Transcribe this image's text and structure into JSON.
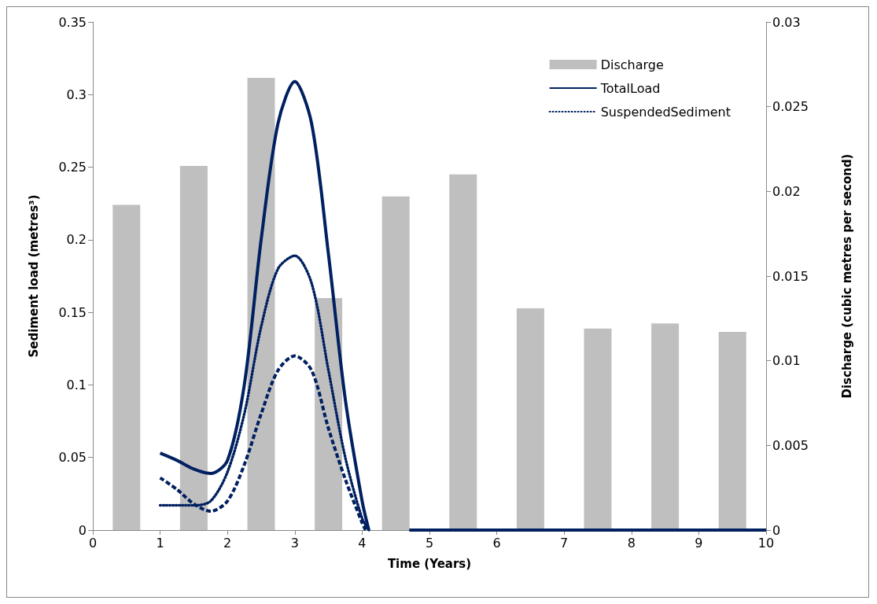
{
  "chart_data": {
    "type": "line",
    "xlabel": "Time (Years)",
    "ylabel": "Sediment load (metres³)",
    "y2label": "Discharge (cubic metres per second)",
    "xlim": [
      0,
      10
    ],
    "xticks": [
      0,
      1,
      2,
      3,
      4,
      5,
      6,
      7,
      8,
      9,
      10
    ],
    "ylim": [
      0,
      0.35
    ],
    "yticks": [
      0,
      0.05,
      0.1,
      0.15,
      0.2,
      0.25,
      0.3,
      0.35
    ],
    "y2lim": [
      0,
      0.03
    ],
    "y2ticks": [
      0,
      0.005,
      0.01,
      0.015,
      0.02,
      0.025,
      0.03
    ],
    "grid": false,
    "legend": "top right",
    "series": [
      {
        "name": "Discharge",
        "type": "bar",
        "axis": "y2",
        "color": "#bfbfbf",
        "x": [
          0.5,
          1.5,
          2.5,
          3.5,
          4.5,
          5.5,
          6.5,
          7.5,
          8.5,
          9.5
        ],
        "values": [
          0.0192,
          0.0215,
          0.0267,
          0.0137,
          0.0197,
          0.021,
          0.0131,
          0.0119,
          0.0122,
          0.0117
        ]
      },
      {
        "name": "TotalLoad",
        "line_style": "solid",
        "color": "#002060",
        "x": [
          1,
          1.25,
          1.5,
          1.75,
          2,
          2.25,
          2.5,
          2.75,
          3,
          3.25,
          3.5,
          3.75,
          4,
          4.1,
          4.4,
          4.7,
          5,
          6,
          7,
          8,
          9,
          10
        ],
        "values": [
          0.053,
          0.048,
          0.042,
          0.039,
          0.048,
          0.1,
          0.2,
          0.28,
          0.309,
          0.28,
          0.19,
          0.09,
          0.02,
          0,
          null,
          0,
          0,
          0,
          0,
          0,
          0,
          0
        ]
      },
      {
        "name": "SuspendedSediment",
        "line_style": "dotted",
        "color": "#002060",
        "x": [
          1,
          1.5,
          1.75,
          2,
          2.25,
          2.5,
          2.75,
          3,
          3.25,
          3.5,
          3.75,
          4,
          4.1
        ],
        "values": [
          0.017,
          0.017,
          0.02,
          0.04,
          0.08,
          0.14,
          0.18,
          0.189,
          0.17,
          0.11,
          0.05,
          0.008,
          0
        ]
      },
      {
        "line_style": "dashed",
        "color": "#002060",
        "x": [
          1,
          1.25,
          1.5,
          1.75,
          2,
          2.25,
          2.5,
          2.75,
          3,
          3.25,
          3.5,
          3.75,
          4,
          4.05
        ],
        "values": [
          0.036,
          0.028,
          0.018,
          0.013,
          0.02,
          0.045,
          0.08,
          0.11,
          0.12,
          0.11,
          0.07,
          0.035,
          0.005,
          0
        ]
      }
    ]
  }
}
